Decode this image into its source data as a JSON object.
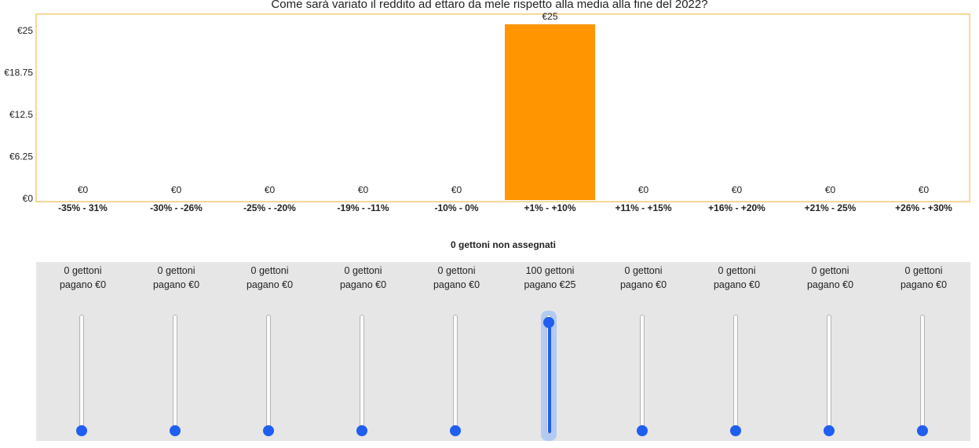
{
  "chart_data": {
    "type": "bar",
    "title": "Come sarà variato il reddito ad ettaro da mele rispetto alla media alla fine del 2022?",
    "categories": [
      "-35% - 31%",
      "-30% - -26%",
      "-25% - -20%",
      "-19% - -11%",
      "-10% - 0%",
      "+1% - +10%",
      "+11% - +15%",
      "+16% - +20%",
      "+21% - 25%",
      "+26% - +30%"
    ],
    "values": [
      0,
      0,
      0,
      0,
      0,
      25,
      0,
      0,
      0,
      0
    ],
    "value_labels": [
      "€0",
      "€0",
      "€0",
      "€0",
      "€0",
      "€25",
      "€0",
      "€0",
      "€0",
      "€0"
    ],
    "yticks": [
      0,
      6.25,
      12.5,
      18.75,
      25
    ],
    "ytick_labels": [
      "€0",
      "€6.25",
      "€12.5",
      "€18.75",
      "€25"
    ],
    "ylim": [
      0,
      25
    ],
    "bar_color": "#ff9500",
    "frame_color": "#e8b332",
    "xlabel": "",
    "ylabel": ""
  },
  "allocator": {
    "unassigned_label": "0 gettoni non assegnati",
    "accent_color": "#1f5ef0",
    "max_tokens": 100,
    "sliders": [
      {
        "line1": "0 gettoni",
        "line2": "pagano €0",
        "tokens": 0
      },
      {
        "line1": "0 gettoni",
        "line2": "pagano €0",
        "tokens": 0
      },
      {
        "line1": "0 gettoni",
        "line2": "pagano €0",
        "tokens": 0
      },
      {
        "line1": "0 gettoni",
        "line2": "pagano €0",
        "tokens": 0
      },
      {
        "line1": "0 gettoni",
        "line2": "pagano €0",
        "tokens": 0
      },
      {
        "line1": "100 gettoni",
        "line2": "pagano €25",
        "tokens": 100,
        "focused": true
      },
      {
        "line1": "0 gettoni",
        "line2": "pagano €0",
        "tokens": 0
      },
      {
        "line1": "0 gettoni",
        "line2": "pagano €0",
        "tokens": 0
      },
      {
        "line1": "0 gettoni",
        "line2": "pagano €0",
        "tokens": 0
      },
      {
        "line1": "0 gettoni",
        "line2": "pagano €0",
        "tokens": 0
      }
    ]
  }
}
